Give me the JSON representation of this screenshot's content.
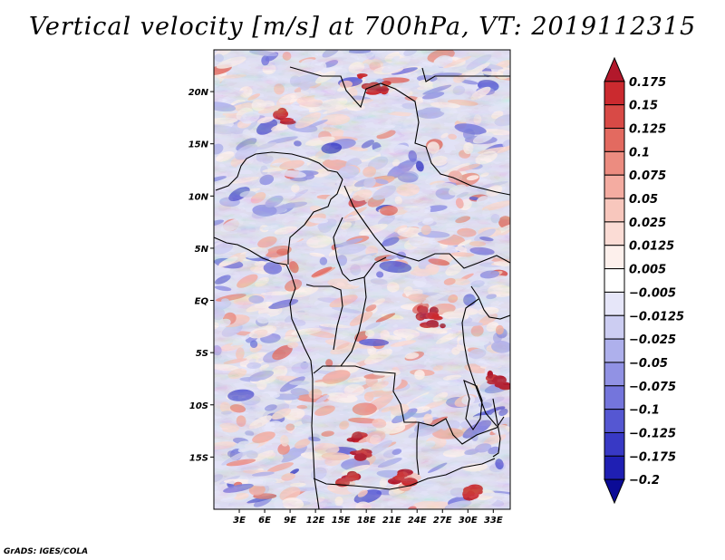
{
  "title": "Vertical velocity [m/s] at 700hPa, VT: 2019112315",
  "credit": "GrADS: IGES/COLA",
  "map": {
    "lon_range": [
      0,
      35
    ],
    "lat_range": [
      -20,
      24
    ],
    "lon_ticks": [
      {
        "value": 3,
        "label": "3E"
      },
      {
        "value": 6,
        "label": "6E"
      },
      {
        "value": 9,
        "label": "9E"
      },
      {
        "value": 12,
        "label": "12E"
      },
      {
        "value": 15,
        "label": "15E"
      },
      {
        "value": 18,
        "label": "18E"
      },
      {
        "value": 21,
        "label": "21E"
      },
      {
        "value": 24,
        "label": "24E"
      },
      {
        "value": 27,
        "label": "27E"
      },
      {
        "value": 30,
        "label": "30E"
      },
      {
        "value": 33,
        "label": "33E"
      }
    ],
    "lat_ticks": [
      {
        "value": 20,
        "label": "20N"
      },
      {
        "value": 15,
        "label": "15N"
      },
      {
        "value": 10,
        "label": "10N"
      },
      {
        "value": 5,
        "label": "5N"
      },
      {
        "value": 0,
        "label": "EQ"
      },
      {
        "value": -5,
        "label": "5S"
      },
      {
        "value": -10,
        "label": "10S"
      },
      {
        "value": -15,
        "label": "15S"
      }
    ]
  },
  "colorbar": {
    "levels": [
      "0.175",
      "0.15",
      "0.125",
      "0.1",
      "0.075",
      "0.05",
      "0.025",
      "0.0125",
      "0.005",
      "−0.005",
      "−0.0125",
      "−0.025",
      "−0.05",
      "−0.075",
      "−0.1",
      "−0.125",
      "−0.175",
      "−0.2"
    ],
    "colors": [
      "#b2182b",
      "#cb2a2f",
      "#d84a46",
      "#e36a60",
      "#ec8c80",
      "#f4aca1",
      "#f8c7bd",
      "#fbdcd5",
      "#fdf0ec",
      "#ffffff",
      "#e6e6f9",
      "#cccdf2",
      "#aeb0ec",
      "#9192e4",
      "#7475dc",
      "#5557d2",
      "#3839c5",
      "#1f1fb3",
      "#0b0b96"
    ]
  }
}
